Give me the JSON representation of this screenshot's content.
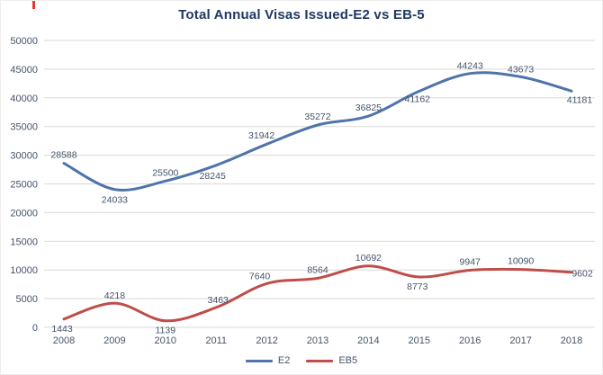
{
  "title": "Total Annual Visas Issued-E2 vs EB-5",
  "colors": {
    "title": "#1f3864",
    "axis_text": "#44546a",
    "data_label_text": "#44546a",
    "gridline": "#d9d9d9",
    "e2_line": "#4e74ab",
    "eb5_line": "#bf4e4a"
  },
  "chart_data": {
    "type": "line",
    "title": "Total Annual Visas Issued-E2 vs EB-5",
    "categories": [
      "2008",
      "2009",
      "2010",
      "2011",
      "2012",
      "2013",
      "2014",
      "2015",
      "2016",
      "2017",
      "2018"
    ],
    "series": [
      {
        "name": "E2",
        "color": "#4e74ab",
        "values": [
          28588,
          24033,
          25500,
          28245,
          31942,
          35272,
          36825,
          41162,
          44243,
          43673,
          41181
        ]
      },
      {
        "name": "EB5",
        "color": "#bf4e4a",
        "values": [
          1443,
          4218,
          1139,
          3463,
          7640,
          8564,
          10692,
          8773,
          9947,
          10090,
          9602
        ]
      }
    ],
    "xlabel": "",
    "ylabel": "",
    "ylim": [
      0,
      50000
    ],
    "yticks": [
      0,
      5000,
      10000,
      15000,
      20000,
      25000,
      30000,
      35000,
      40000,
      45000,
      50000
    ],
    "grid": true,
    "markers": false,
    "data_labels": true,
    "legend_position": "bottom"
  },
  "legend": {
    "items": [
      {
        "label": "E2",
        "color": "#4e74ab"
      },
      {
        "label": "EB5",
        "color": "#bf4e4a"
      }
    ]
  }
}
